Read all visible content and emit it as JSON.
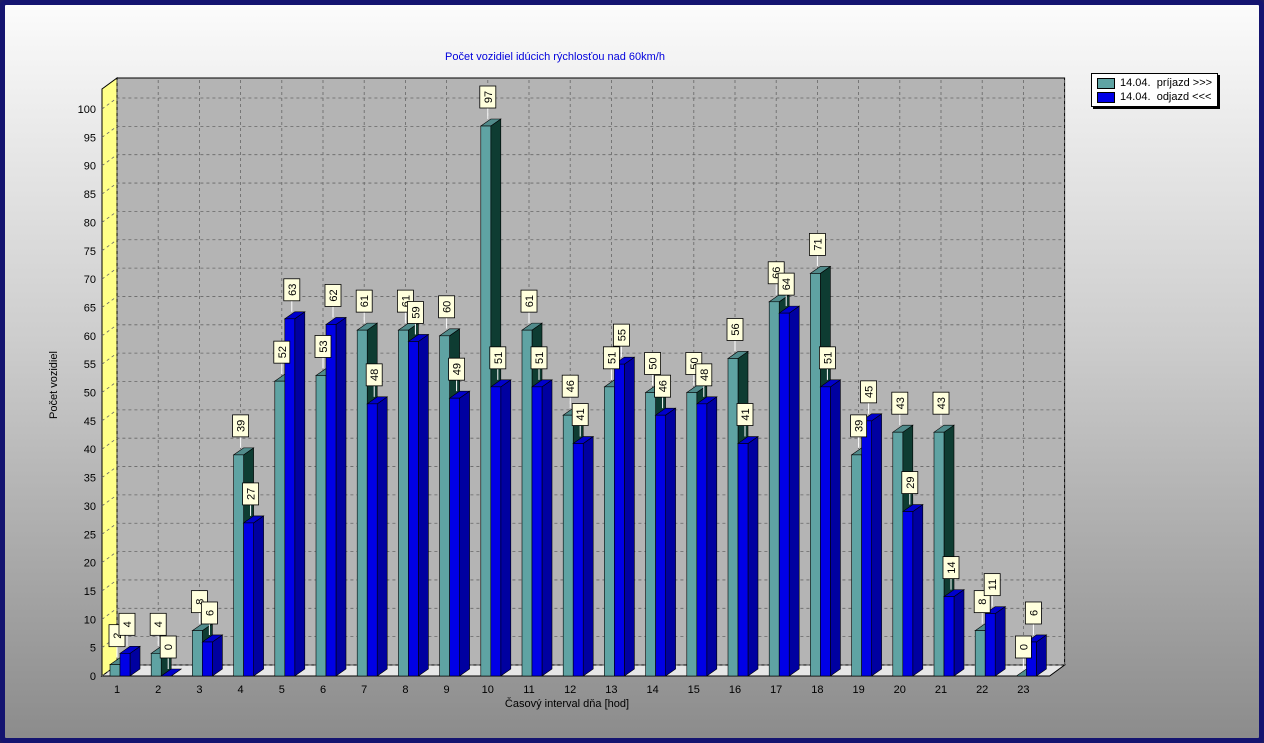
{
  "chart_data": {
    "type": "bar",
    "title": "Počet vozidiel idúcich rýchlosťou nad 60km/h",
    "xlabel": "Časový interval dňa [hod]",
    "ylabel": "Počet vozidiel",
    "ylim": [
      0,
      100
    ],
    "yticks": [
      0,
      5,
      10,
      15,
      20,
      25,
      30,
      35,
      40,
      45,
      50,
      55,
      60,
      65,
      70,
      75,
      80,
      85,
      90,
      95,
      100
    ],
    "categories": [
      "1",
      "2",
      "3",
      "4",
      "5",
      "6",
      "7",
      "8",
      "9",
      "10",
      "11",
      "12",
      "13",
      "14",
      "15",
      "16",
      "17",
      "18",
      "19",
      "20",
      "21",
      "22",
      "23"
    ],
    "series": [
      {
        "name": "14.04.  príjazd >>>",
        "color": "#5fa3a3",
        "values": [
          2,
          4,
          8,
          39,
          52,
          53,
          61,
          61,
          60,
          97,
          61,
          46,
          51,
          50,
          50,
          56,
          66,
          71,
          39,
          43,
          43,
          8,
          0
        ]
      },
      {
        "name": "14.04.  odjazd <<<",
        "color": "#0000e6",
        "values": [
          4,
          0,
          6,
          27,
          63,
          62,
          48,
          59,
          49,
          51,
          51,
          41,
          55,
          46,
          48,
          41,
          64,
          51,
          45,
          29,
          14,
          11,
          6
        ]
      }
    ],
    "grid": true,
    "legend_position": "top-right"
  }
}
